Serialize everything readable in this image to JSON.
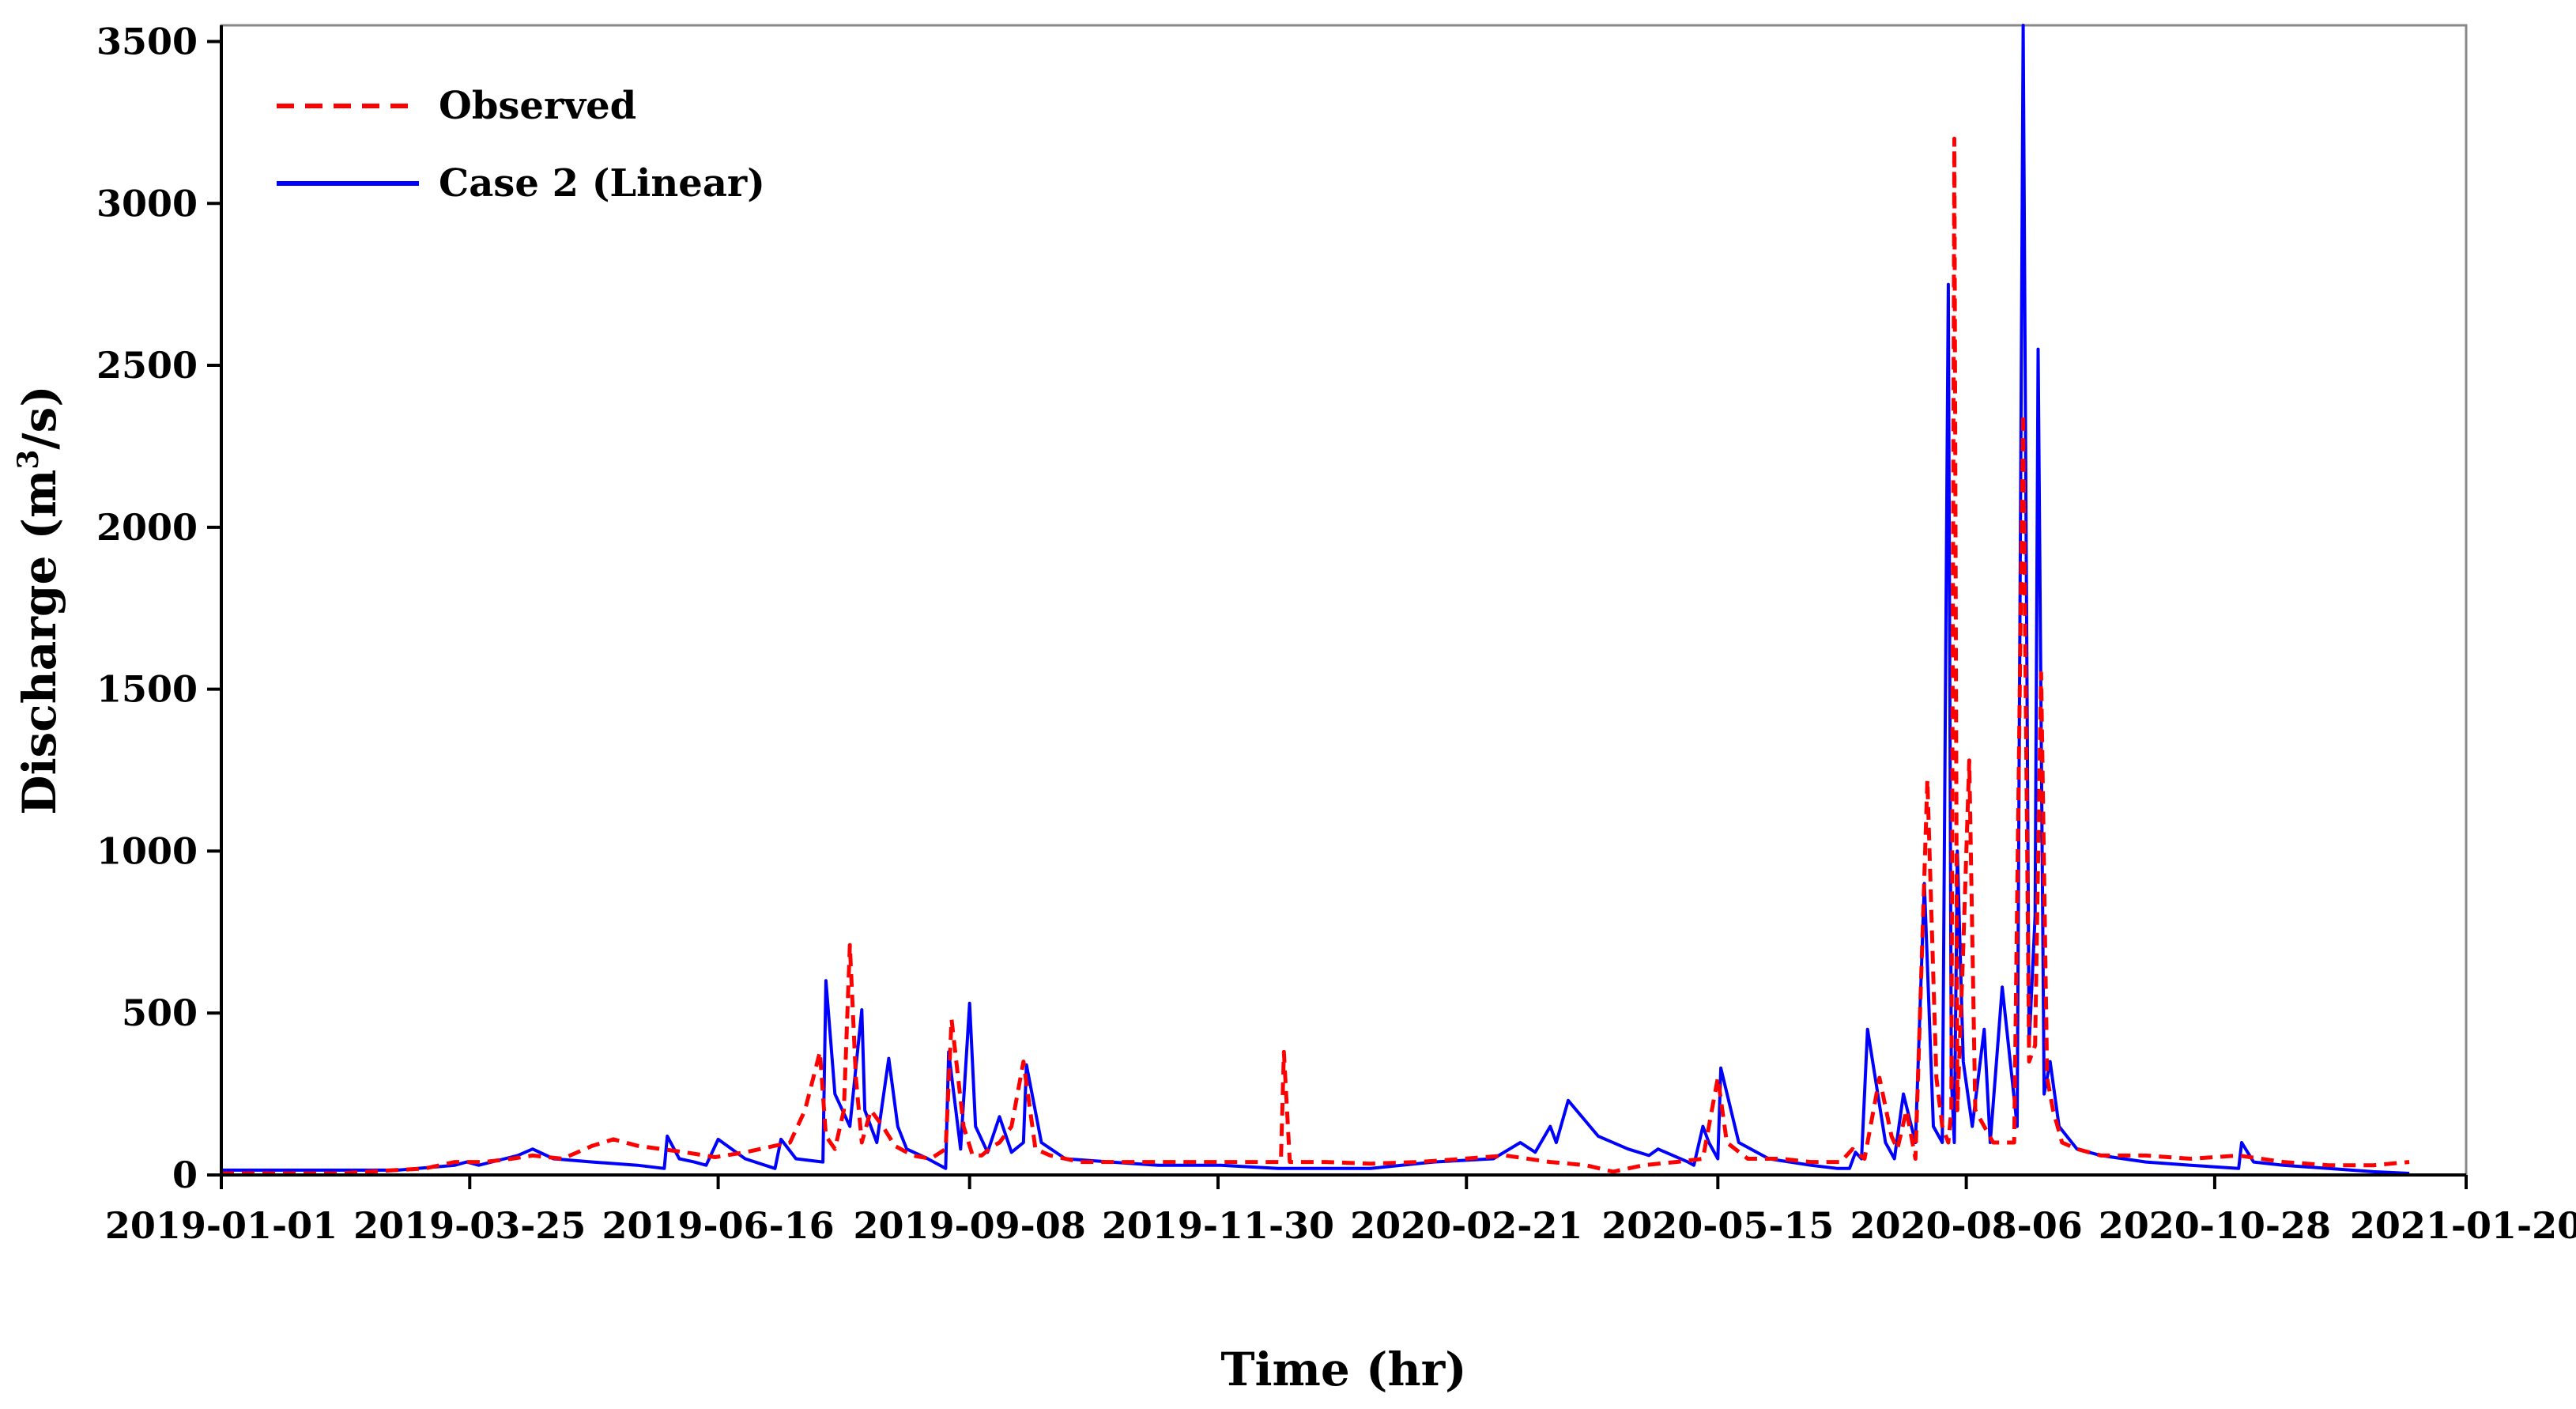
{
  "chart_data": {
    "type": "line",
    "title": "",
    "xlabel": "Time (hr)",
    "ylabel_main": "Discharge (m",
    "ylabel_sup": "3",
    "ylabel_tail": "/s)",
    "xlim": [
      "2019-01-01",
      "2021-01-20"
    ],
    "ylim": [
      0,
      3550
    ],
    "yticks": [
      0,
      500,
      1000,
      1500,
      2000,
      2500,
      3000,
      3500
    ],
    "xticks": [
      "2019-01-01",
      "2019-03-25",
      "2019-06-16",
      "2019-09-08",
      "2019-11-30",
      "2020-02-21",
      "2020-05-15",
      "2020-08-06",
      "2020-10-28",
      "2021-01-20"
    ],
    "grid": false,
    "legend_position": "top-left",
    "series": [
      {
        "name": "Observed",
        "color": "#ff0000",
        "style": "dashed",
        "x": [
          "2019-01-01",
          "2019-01-20",
          "2019-02-10",
          "2019-02-28",
          "2019-03-10",
          "2019-03-20",
          "2019-03-30",
          "2019-04-08",
          "2019-04-15",
          "2019-04-25",
          "2019-05-05",
          "2019-05-12",
          "2019-05-20",
          "2019-05-28",
          "2019-06-05",
          "2019-06-15",
          "2019-06-25",
          "2019-07-05",
          "2019-07-10",
          "2019-07-15",
          "2019-07-20",
          "2019-07-22",
          "2019-07-25",
          "2019-07-28",
          "2019-07-30",
          "2019-08-01",
          "2019-08-03",
          "2019-08-06",
          "2019-08-10",
          "2019-08-14",
          "2019-08-20",
          "2019-08-26",
          "2019-08-31",
          "2019-09-02",
          "2019-09-06",
          "2019-09-09",
          "2019-09-12",
          "2019-09-16",
          "2019-09-18",
          "2019-09-22",
          "2019-09-26",
          "2019-09-30",
          "2019-10-05",
          "2019-10-15",
          "2019-10-25",
          "2019-11-05",
          "2019-11-20",
          "2019-12-05",
          "2019-12-15",
          "2019-12-21",
          "2019-12-22",
          "2019-12-24",
          "2019-12-25",
          "2020-01-05",
          "2020-01-20",
          "2020-02-05",
          "2020-02-20",
          "2020-03-05",
          "2020-03-20",
          "2020-04-01",
          "2020-04-10",
          "2020-04-20",
          "2020-05-01",
          "2020-05-10",
          "2020-05-15",
          "2020-05-18",
          "2020-05-25",
          "2020-06-05",
          "2020-06-15",
          "2020-06-25",
          "2020-06-29",
          "2020-07-03",
          "2020-07-08",
          "2020-07-12",
          "2020-07-14",
          "2020-07-17",
          "2020-07-20",
          "2020-07-24",
          "2020-07-27",
          "2020-07-29",
          "2020-07-31",
          "2020-08-01",
          "2020-08-02",
          "2020-08-03",
          "2020-08-05",
          "2020-08-07",
          "2020-08-09",
          "2020-08-12",
          "2020-08-15",
          "2020-08-18",
          "2020-08-22",
          "2020-08-25",
          "2020-08-27",
          "2020-08-29",
          "2020-08-31",
          "2020-09-02",
          "2020-09-04",
          "2020-09-07",
          "2020-09-12",
          "2020-09-20",
          "2020-10-05",
          "2020-10-20",
          "2020-11-05",
          "2020-11-20",
          "2020-12-05",
          "2020-12-20",
          "2021-01-01"
        ],
        "y": [
          5,
          5,
          5,
          15,
          20,
          40,
          40,
          50,
          60,
          50,
          90,
          110,
          90,
          80,
          70,
          55,
          70,
          90,
          100,
          200,
          380,
          120,
          80,
          200,
          710,
          300,
          100,
          200,
          150,
          90,
          60,
          50,
          80,
          480,
          150,
          60,
          60,
          90,
          100,
          150,
          350,
          80,
          60,
          40,
          40,
          40,
          40,
          40,
          40,
          40,
          380,
          40,
          40,
          40,
          35,
          40,
          50,
          60,
          40,
          30,
          10,
          30,
          40,
          50,
          300,
          100,
          50,
          50,
          40,
          40,
          80,
          50,
          300,
          120,
          80,
          200,
          50,
          1220,
          300,
          150,
          100,
          200,
          3200,
          200,
          700,
          1280,
          200,
          150,
          100,
          100,
          100,
          2350,
          350,
          400,
          1550,
          300,
          200,
          100,
          80,
          60,
          60,
          50,
          60,
          40,
          30,
          30,
          40
        ]
      },
      {
        "name": "Case 2 (Linear)",
        "color": "#0000ff",
        "style": "solid",
        "x": [
          "2019-01-01",
          "2019-02-01",
          "2019-03-01",
          "2019-03-20",
          "2019-03-24",
          "2019-03-28",
          "2019-04-10",
          "2019-04-15",
          "2019-04-22",
          "2019-05-05",
          "2019-05-20",
          "2019-05-29",
          "2019-05-30",
          "2019-06-03",
          "2019-06-08",
          "2019-06-12",
          "2019-06-16",
          "2019-06-25",
          "2019-07-05",
          "2019-07-07",
          "2019-07-12",
          "2019-07-21",
          "2019-07-22",
          "2019-07-25",
          "2019-07-30",
          "2019-08-03",
          "2019-08-04",
          "2019-08-08",
          "2019-08-12",
          "2019-08-15",
          "2019-08-18",
          "2019-08-25",
          "2019-08-31",
          "2019-09-01",
          "2019-09-05",
          "2019-09-08",
          "2019-09-10",
          "2019-09-14",
          "2019-09-18",
          "2019-09-22",
          "2019-09-26",
          "2019-09-27",
          "2019-10-02",
          "2019-10-10",
          "2019-10-25",
          "2019-11-10",
          "2019-12-01",
          "2019-12-20",
          "2020-01-05",
          "2020-01-20",
          "2020-02-10",
          "2020-03-01",
          "2020-03-10",
          "2020-03-15",
          "2020-03-20",
          "2020-03-22",
          "2020-03-26",
          "2020-04-05",
          "2020-04-15",
          "2020-04-22",
          "2020-04-25",
          "2020-05-05",
          "2020-05-07",
          "2020-05-10",
          "2020-05-12",
          "2020-05-15",
          "2020-05-16",
          "2020-05-22",
          "2020-06-01",
          "2020-06-15",
          "2020-06-24",
          "2020-06-28",
          "2020-06-30",
          "2020-07-02",
          "2020-07-04",
          "2020-07-10",
          "2020-07-13",
          "2020-07-16",
          "2020-07-20",
          "2020-07-23",
          "2020-07-26",
          "2020-07-29",
          "2020-07-31",
          "2020-08-01",
          "2020-08-02",
          "2020-08-03",
          "2020-08-05",
          "2020-08-08",
          "2020-08-12",
          "2020-08-14",
          "2020-08-18",
          "2020-08-23",
          "2020-08-25",
          "2020-08-27",
          "2020-08-29",
          "2020-08-30",
          "2020-09-01",
          "2020-09-03",
          "2020-09-06",
          "2020-09-12",
          "2020-09-20",
          "2020-10-05",
          "2020-10-20",
          "2020-11-05",
          "2020-11-06",
          "2020-11-10",
          "2020-11-20",
          "2020-12-05",
          "2020-12-20",
          "2021-01-01"
        ],
        "y": [
          15,
          15,
          15,
          30,
          40,
          30,
          60,
          80,
          50,
          40,
          30,
          20,
          120,
          50,
          40,
          30,
          110,
          50,
          20,
          110,
          50,
          40,
          600,
          250,
          150,
          510,
          200,
          100,
          360,
          150,
          80,
          50,
          20,
          380,
          80,
          530,
          150,
          70,
          180,
          70,
          100,
          340,
          100,
          50,
          40,
          30,
          30,
          20,
          20,
          20,
          40,
          50,
          100,
          70,
          150,
          100,
          230,
          120,
          80,
          60,
          80,
          40,
          30,
          150,
          100,
          50,
          330,
          100,
          50,
          30,
          20,
          20,
          70,
          50,
          450,
          100,
          50,
          250,
          100,
          900,
          150,
          100,
          2750,
          300,
          100,
          1000,
          350,
          150,
          450,
          100,
          580,
          150,
          3550,
          400,
          800,
          2550,
          250,
          350,
          150,
          80,
          60,
          40,
          30,
          20,
          100,
          40,
          30,
          20,
          10,
          5
        ]
      }
    ]
  }
}
